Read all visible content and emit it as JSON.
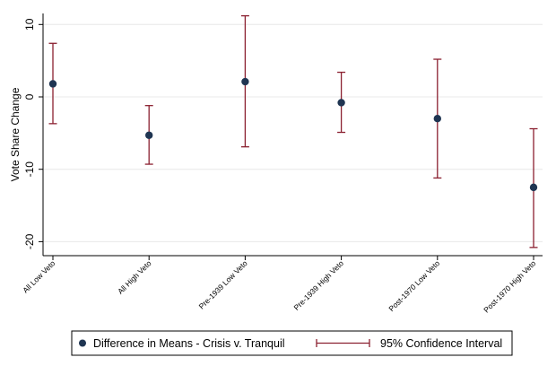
{
  "chart_data": {
    "type": "scatter",
    "ylabel": "Vote Share Change",
    "xlabel": "",
    "categories": [
      "All Low Veto",
      "All High Veto",
      "Pre-1939 Low Veto",
      "Pre-1939 High Veto",
      "Post-1970 Low Veto",
      "Post-1970 High Veto"
    ],
    "series": [
      {
        "name": "Difference in Means - Crisis v. Tranquil",
        "values": [
          1.8,
          -5.3,
          2.1,
          -0.8,
          -3.0,
          -12.5
        ]
      },
      {
        "name": "95% Confidence Interval",
        "lower": [
          -3.7,
          -9.3,
          -6.9,
          -4.9,
          -11.2,
          -20.8
        ],
        "upper": [
          7.4,
          -1.2,
          11.2,
          3.4,
          5.2,
          -4.4
        ]
      }
    ],
    "ylim": [
      -21.5,
      12
    ],
    "yticks": [
      10,
      0,
      -10,
      -20
    ],
    "grid": true,
    "legend_position": "bottom",
    "colors": {
      "point": "#1f3552",
      "interval": "#8b2030",
      "grid": "#e8e8e8"
    }
  }
}
